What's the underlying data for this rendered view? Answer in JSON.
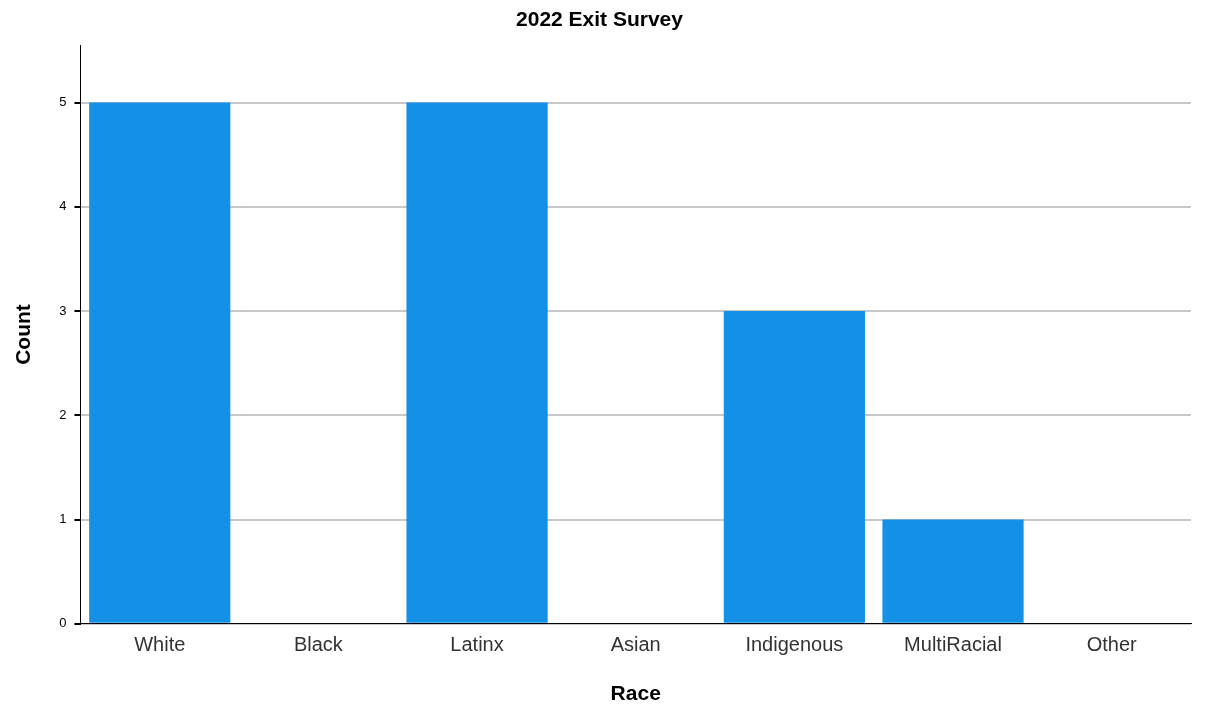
{
  "chart_data": {
    "type": "bar",
    "title": "2022 Exit Survey",
    "xlabel": "Race",
    "ylabel": "Count",
    "categories": [
      "White",
      "Black",
      "Latinx",
      "Asian",
      "Indigenous",
      "MultiRacial",
      "Other"
    ],
    "values": [
      5,
      0,
      5,
      0,
      3,
      1,
      0
    ],
    "color": "#1490e6",
    "ylim": [
      0,
      5.55
    ],
    "yticks": [
      0,
      1,
      2,
      3,
      4,
      5
    ],
    "grid": "y"
  }
}
